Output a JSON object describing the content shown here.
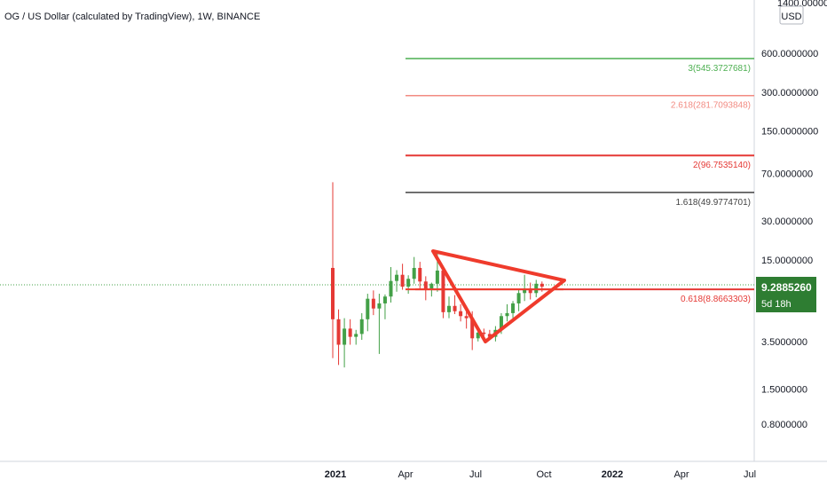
{
  "header": {
    "title": "OG / US Dollar (calculated by TradingView), 1W, BINANCE"
  },
  "currency_button": "USD",
  "price_scale": {
    "top_partial": "1400.0000000",
    "ticks": [
      "600.0000000",
      "300.0000000",
      "150.0000000",
      "70.0000000",
      "30.0000000",
      "15.0000000",
      "3.5000000",
      "1.5000000",
      "0.8000000"
    ]
  },
  "time_axis": {
    "ticks": [
      "2021",
      "Apr",
      "Jul",
      "Oct",
      "2022",
      "Apr",
      "Jul"
    ]
  },
  "last_price": {
    "value": "9.2885260",
    "countdown": "5d 18h",
    "color": "#2e7d32"
  },
  "fib_levels": [
    {
      "label": "3(545.3727681)",
      "color": "#4caf50"
    },
    {
      "label": "2.618(281.7093848)",
      "color": "#f28b82"
    },
    {
      "label": "2(96.7535140)",
      "color": "#e53935"
    },
    {
      "label": "1.618(49.9774701)",
      "color": "#424242"
    },
    {
      "label": "0.618(8.8663303)",
      "color": "#e53935"
    }
  ],
  "colors": {
    "up": "#43a047",
    "down": "#e53935",
    "triangle": "#ef3b2c",
    "axis_text": "#131722"
  },
  "chart_data": {
    "type": "candlestick",
    "title": "OG / US Dollar (calculated by TradingView), 1W, BINANCE",
    "y_scale": "log",
    "ylim": [
      0.5,
      1400
    ],
    "x_ticks": [
      "2021",
      "Apr",
      "Jul",
      "Oct",
      "2022",
      "Apr",
      "Jul"
    ],
    "last_value": 9.288526,
    "fibonacci_levels": [
      {
        "ratio": 3,
        "value": 545.3727681
      },
      {
        "ratio": 2.618,
        "value": 281.7093848
      },
      {
        "ratio": 2,
        "value": 96.753514
      },
      {
        "ratio": 1.618,
        "value": 49.9774701
      },
      {
        "ratio": 0.618,
        "value": 8.8663303
      }
    ],
    "candles_ohlc": [
      [
        13,
        60,
        2.6,
        5.2
      ],
      [
        5.2,
        6.2,
        2.3,
        3.3
      ],
      [
        3.3,
        5.3,
        2.2,
        4.4
      ],
      [
        4.4,
        5.2,
        3.3,
        3.8
      ],
      [
        3.8,
        4.3,
        3.3,
        4.0
      ],
      [
        4.0,
        5.8,
        3.6,
        5.2
      ],
      [
        5.2,
        8.2,
        4.2,
        7.5
      ],
      [
        7.5,
        8.7,
        5.6,
        6.3
      ],
      [
        6.3,
        8.2,
        2.8,
        6.9
      ],
      [
        6.9,
        8.1,
        5.2,
        7.8
      ],
      [
        7.8,
        13.2,
        7.0,
        10.3
      ],
      [
        10.3,
        12.5,
        8.5,
        11.5
      ],
      [
        11.5,
        14.0,
        8.8,
        9.3
      ],
      [
        9.3,
        11.4,
        8.2,
        10.7
      ],
      [
        10.7,
        15.8,
        9.8,
        13.0
      ],
      [
        13.0,
        14.5,
        9.0,
        10.2
      ],
      [
        10.2,
        11.2,
        7.3,
        9.0
      ],
      [
        9.0,
        10.0,
        7.8,
        9.8
      ],
      [
        9.8,
        17.5,
        8.5,
        12.4
      ],
      [
        12.4,
        13.5,
        5.3,
        5.9
      ],
      [
        5.9,
        7.8,
        5.3,
        6.6
      ],
      [
        6.6,
        8.0,
        5.7,
        6.0
      ],
      [
        6.0,
        6.8,
        5.0,
        5.5
      ],
      [
        5.5,
        6.2,
        4.4,
        5.3
      ],
      [
        5.3,
        6.0,
        3.0,
        3.7
      ],
      [
        3.7,
        4.5,
        3.5,
        4.1
      ],
      [
        4.1,
        4.4,
        3.6,
        4.0
      ],
      [
        4.0,
        4.3,
        3.6,
        3.8
      ],
      [
        3.8,
        4.6,
        3.5,
        4.3
      ],
      [
        4.3,
        5.8,
        4.0,
        5.5
      ],
      [
        5.5,
        6.8,
        5.0,
        5.8
      ],
      [
        5.8,
        7.2,
        5.3,
        6.9
      ],
      [
        6.9,
        8.8,
        6.0,
        8.3
      ],
      [
        8.3,
        11.5,
        7.2,
        9.0
      ],
      [
        9.0,
        10.0,
        7.4,
        8.3
      ],
      [
        8.3,
        10.5,
        7.7,
        9.8
      ],
      [
        9.8,
        10.2,
        8.5,
        9.3
      ]
    ],
    "drawings": {
      "horizontal_level": 8.87,
      "triangle_pattern": true
    }
  }
}
